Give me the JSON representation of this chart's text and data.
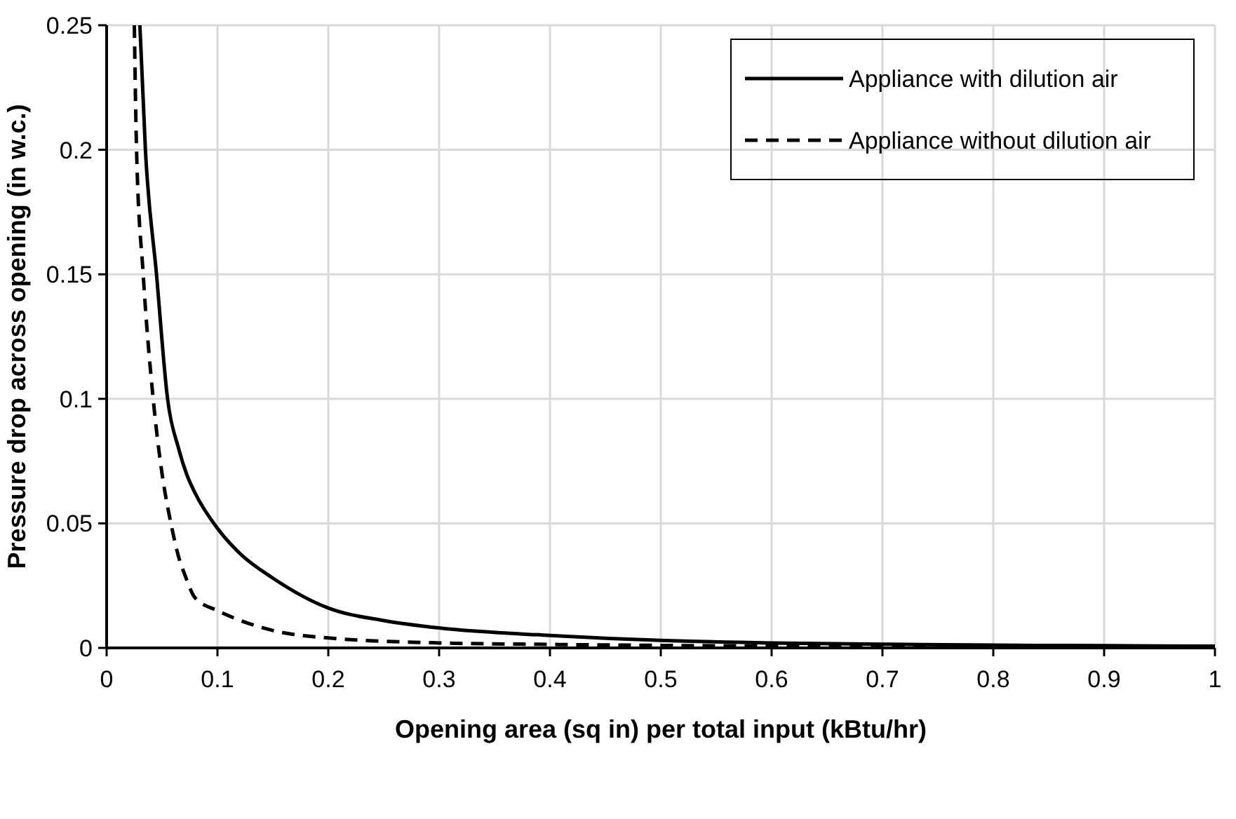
{
  "chart_data": {
    "type": "line",
    "xlabel": "Opening area (sq in) per total input (kBtu/hr)",
    "ylabel": "Pressure drop across opening (in w.c.)",
    "xlim": [
      0,
      1
    ],
    "ylim": [
      0,
      0.25
    ],
    "xticks": [
      0,
      0.1,
      0.2,
      0.3,
      0.4,
      0.5,
      0.6,
      0.7,
      0.8,
      0.9,
      1
    ],
    "yticks": [
      0,
      0.05,
      0.1,
      0.15,
      0.2,
      0.25
    ],
    "grid": true,
    "legend": "top right",
    "marker": "none",
    "series": [
      {
        "name": "Appliance with dilution air",
        "color": "#000000",
        "line_style": "solid",
        "x": [
          0.03,
          0.035,
          0.045,
          0.055,
          0.065,
          0.072,
          0.08,
          0.1,
          0.12,
          0.15,
          0.2,
          0.25,
          0.3,
          0.4,
          0.5,
          0.6,
          0.7,
          0.8,
          0.9,
          1
        ],
        "values": [
          0.25,
          0.2,
          0.15,
          0.1,
          0.08,
          0.07,
          0.062,
          0.048,
          0.038,
          0.028,
          0.016,
          0.011,
          0.008,
          0.005,
          0.003,
          0.002,
          0.0015,
          0.0011,
          0.0009,
          0.0007
        ]
      },
      {
        "name": "Appliance without dilution air",
        "color": "#000000",
        "line_style": "dashed",
        "x": [
          0.025,
          0.027,
          0.033,
          0.042,
          0.05,
          0.058,
          0.066,
          0.07,
          0.08,
          0.1,
          0.15,
          0.2,
          0.3,
          0.4,
          0.5,
          0.7,
          1
        ],
        "values": [
          0.25,
          0.2,
          0.15,
          0.1,
          0.07,
          0.05,
          0.035,
          0.03,
          0.02,
          0.015,
          0.007,
          0.004,
          0.002,
          0.0014,
          0.001,
          0.0006,
          0.0003
        ]
      }
    ]
  }
}
